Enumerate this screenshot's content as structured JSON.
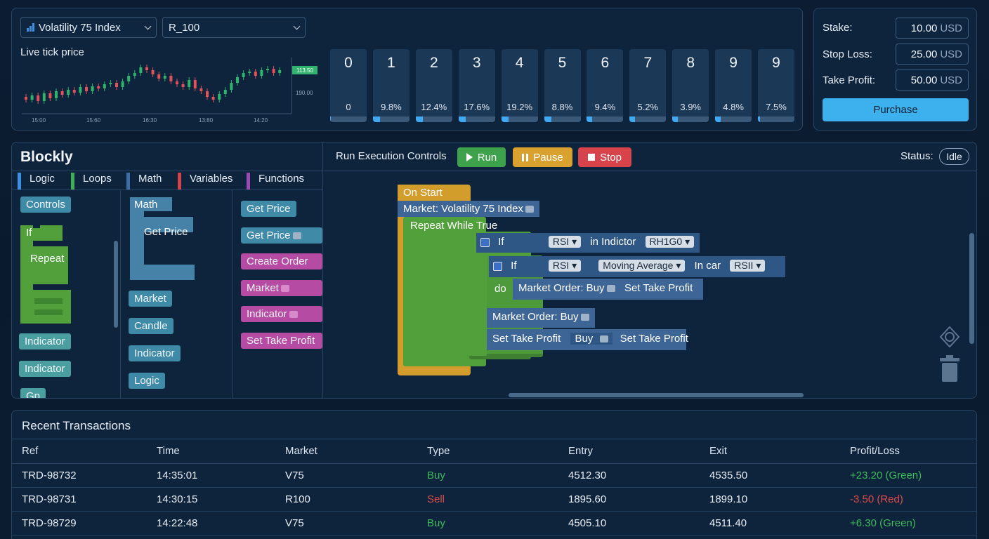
{
  "market": {
    "symbol_selector": "Volatility 75 Index",
    "code_selector": "R_100",
    "live_label": "Live tick price",
    "price_tag": "113.50",
    "axis_price": "190.00",
    "time_labels": [
      "15:00",
      "15:60",
      "16:30",
      "13:80",
      "14:20"
    ]
  },
  "digits": [
    {
      "digit": "0",
      "pct": "0",
      "fill": 0.02
    },
    {
      "digit": "1",
      "pct": "9.8%",
      "fill": 0.2
    },
    {
      "digit": "2",
      "pct": "12.4%",
      "fill": 0.2
    },
    {
      "digit": "3",
      "pct": "17.6%",
      "fill": 0.2
    },
    {
      "digit": "4",
      "pct": "19.2%",
      "fill": 0.2
    },
    {
      "digit": "5",
      "pct": "8.8%",
      "fill": 0.2
    },
    {
      "digit": "6",
      "pct": "9.4%",
      "fill": 0.15
    },
    {
      "digit": "7",
      "pct": "5.2%",
      "fill": 0.15
    },
    {
      "digit": "8",
      "pct": "3.9%",
      "fill": 0.15
    },
    {
      "digit": "9",
      "pct": "4.8%",
      "fill": 0.15
    },
    {
      "digit": "9",
      "pct": "7.5%",
      "fill": 0.05
    }
  ],
  "trade": {
    "stake_label": "Stake:",
    "stake_value": "10.00",
    "stop_loss_label": "Stop Loss:",
    "stop_loss_value": "25.00",
    "take_profit_label": "Take Profit:",
    "take_profit_value": "50.00",
    "currency": "USD",
    "purchase_label": "Purchase"
  },
  "blockly": {
    "title": "Blockly",
    "categories": [
      "Logic",
      "Loops",
      "Math",
      "Variables",
      "Functions"
    ],
    "col1": [
      "Controls",
      "If",
      "Repeat",
      "Indicator",
      "Indicator",
      "Gp"
    ],
    "col2": [
      "Math",
      "Get Price",
      "Market",
      "Candle",
      "Indicator",
      "Logic"
    ],
    "col3": [
      "Get Price",
      "Get Price",
      "Create Order",
      "Market",
      "Indicator",
      "Set Take Profit"
    ]
  },
  "controls": {
    "title": "Run Execution Controls",
    "run": "Run",
    "pause": "Pause",
    "stop": "Stop",
    "status_label": "Status:",
    "status_value": "Idle"
  },
  "workspace": {
    "on_start": "On Start",
    "market": "Market: Volatility 75 Index",
    "repeat": "Repeat While True",
    "if1": "If",
    "rsi1": "RSI",
    "in_indicator": "in Indictor",
    "rh": "RH1G0",
    "if2": "If",
    "rsi2": "RSI",
    "moving_average": "Moving Average",
    "in_car": "In car",
    "rsi3": "RSII",
    "do": "do",
    "market_order_buy": "Market Order: Buy",
    "set_take_profit": "Set Take Profit",
    "market_order_buy2": "Market Order: Buy",
    "set_take_profit2": "Set Take Profit",
    "buy": "Buy",
    "set_take_profit3": "Set Take Profit"
  },
  "transactions": {
    "title": "Recent Transactions",
    "columns": [
      "Ref",
      "Time",
      "Market",
      "Type",
      "Entry",
      "Exit",
      "Profit/Loss"
    ],
    "rows": [
      {
        "ref": "TRD-98732",
        "time": "14:35:01",
        "market": "V75",
        "type": "Buy",
        "entry": "4512.30",
        "exit": "4535.50",
        "pl": "+23.20 (Green)"
      },
      {
        "ref": "TRD-98731",
        "time": "14:30:15",
        "market": "R100",
        "type": "Sell",
        "entry": "1895.60",
        "exit": "1899.10",
        "pl": "-3.50 (Red)"
      },
      {
        "ref": "TRD-98729",
        "time": "14:22:48",
        "market": "V75",
        "type": "Buy",
        "entry": "4505.10",
        "exit": "4511.40",
        "pl": "+6.30 (Green)"
      }
    ]
  },
  "colors": {
    "up": "#2fb36d",
    "down": "#e0525c",
    "buy": "#3dba5a",
    "sell": "#e04a4a",
    "accent": "#41a9f2"
  }
}
